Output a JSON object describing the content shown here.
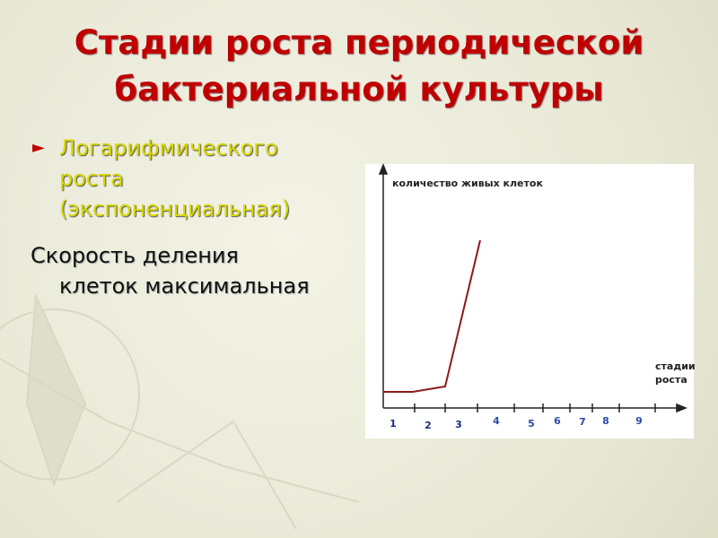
{
  "header": {
    "title_lines": [
      "Стадии роста периодической",
      "бактериальной культуры"
    ]
  },
  "body": {
    "bullet_lines": [
      "Логарифмического",
      "роста",
      "(экспоненциальная)"
    ],
    "paragraph_lines": [
      "Скорость деления",
      "клеток максимальная"
    ]
  },
  "diagram": {
    "y_axis_label": "количество живых клеток",
    "x_axis_label_lines": [
      "стадии",
      "роста"
    ],
    "stages": [
      1,
      2,
      3,
      4,
      5,
      6,
      7,
      8,
      9
    ]
  }
}
